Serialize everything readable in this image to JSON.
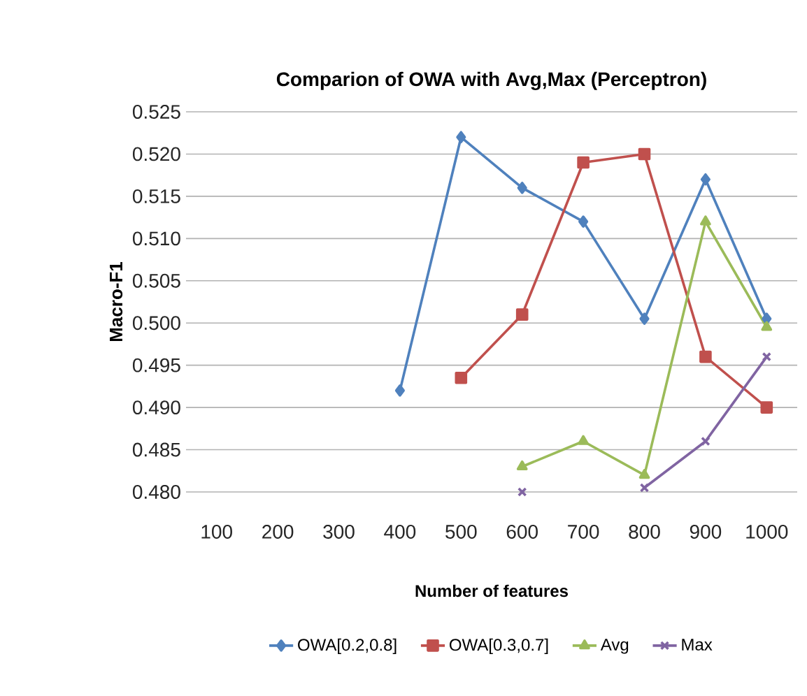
{
  "chart_data": {
    "type": "line",
    "title": "Comparion of OWA with Avg,Max (Perceptron)",
    "xlabel": "Number of features",
    "ylabel": "Macro-F1",
    "categories": [
      "100",
      "200",
      "300",
      "400",
      "500",
      "600",
      "700",
      "800",
      "900",
      "1000"
    ],
    "series": [
      {
        "name": "OWA[0.2,0.8]",
        "color": "#4f81bd",
        "marker": "diamond",
        "values": [
          null,
          null,
          null,
          0.492,
          0.522,
          0.516,
          0.512,
          0.5005,
          0.517,
          0.5005
        ]
      },
      {
        "name": "OWA[0.3,0.7]",
        "color": "#c0504d",
        "marker": "square",
        "values": [
          null,
          null,
          null,
          null,
          0.4935,
          0.501,
          0.519,
          0.52,
          0.496,
          0.49
        ]
      },
      {
        "name": "Avg",
        "color": "#9bbb59",
        "marker": "triangle",
        "values": [
          null,
          null,
          null,
          null,
          null,
          0.483,
          0.486,
          0.482,
          0.512,
          0.4995
        ]
      },
      {
        "name": "Max",
        "color": "#8064a2",
        "marker": "cross",
        "values": [
          null,
          null,
          null,
          null,
          null,
          0.48,
          null,
          0.4805,
          0.486,
          0.496
        ]
      }
    ],
    "ylim": [
      0.48,
      0.525
    ],
    "yticks": [
      {
        "value": 0.48,
        "label": "0.480"
      },
      0.485,
      {
        "value": 0.49,
        "label": "0.490"
      },
      0.495,
      {
        "value": 0.5,
        "label": "0.500"
      },
      0.505,
      {
        "value": 0.51,
        "label": "0.510"
      },
      0.515,
      {
        "value": 0.52,
        "label": "0.520"
      },
      0.525
    ],
    "grid": "y",
    "legend": "bottom",
    "line_style": "solid"
  }
}
